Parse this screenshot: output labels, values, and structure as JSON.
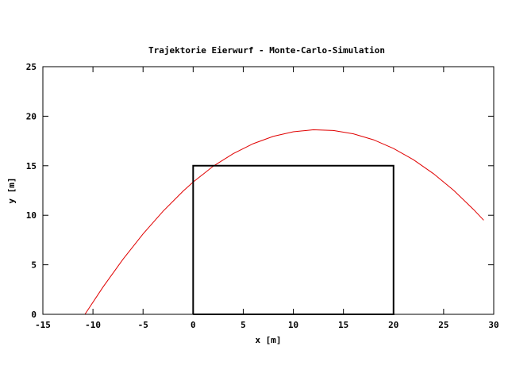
{
  "chart_data": {
    "type": "line",
    "title": "Trajektorie Eierwurf - Monte-Carlo-Simulation",
    "xlabel": "x [m]",
    "ylabel": "y [m]",
    "xlim": [
      -15,
      30
    ],
    "ylim": [
      0,
      25
    ],
    "xticks": [
      -15,
      -10,
      -5,
      0,
      5,
      10,
      15,
      20,
      25,
      30
    ],
    "yticks": [
      0,
      5,
      10,
      15,
      20,
      25
    ],
    "grid": false,
    "legend": "none",
    "series": [
      {
        "kind": "curve",
        "color": "#e00000",
        "x": [
          -10.8,
          -9,
          -7,
          -5,
          -3,
          -1,
          0,
          2,
          4,
          6,
          8,
          10,
          12,
          14,
          16,
          18,
          20,
          22,
          24,
          26,
          28,
          29.0
        ],
        "y": [
          0,
          2.75,
          5.56,
          8.12,
          10.41,
          12.44,
          13.35,
          14.95,
          16.22,
          17.23,
          17.97,
          18.43,
          18.63,
          18.56,
          18.22,
          17.62,
          16.74,
          15.6,
          14.19,
          12.52,
          10.57,
          9.5
        ]
      },
      {
        "kind": "rectangle",
        "color": "#000000",
        "x": [
          0,
          0,
          20,
          20,
          0
        ],
        "y": [
          0,
          15,
          15,
          0,
          0
        ]
      }
    ]
  }
}
